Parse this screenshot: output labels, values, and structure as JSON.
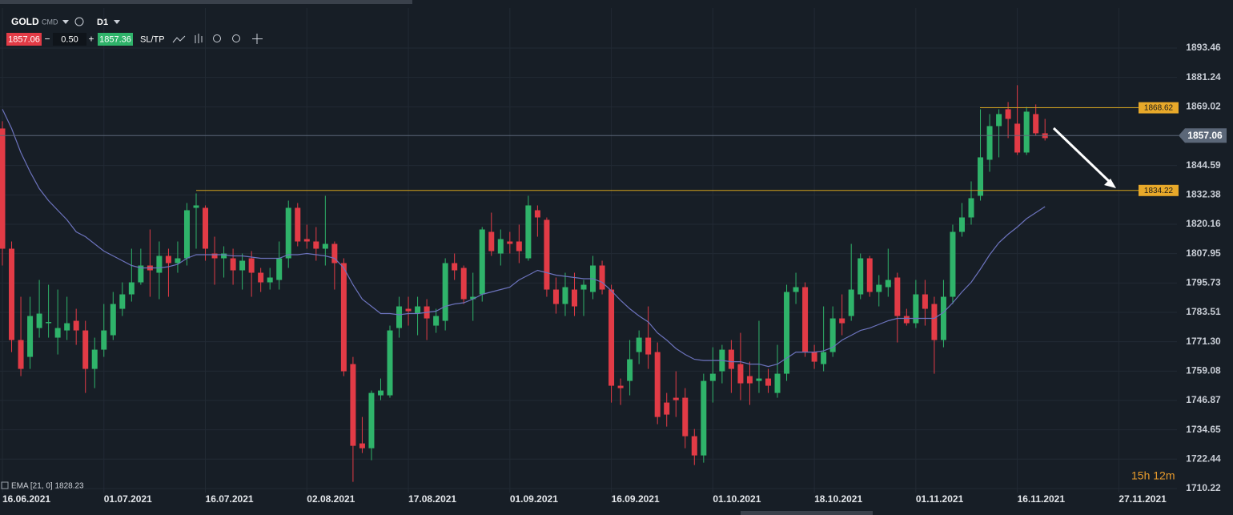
{
  "toolbar": {
    "symbol": "GOLD",
    "kind": "CMD",
    "timeframe": "D1",
    "volume": "0.50",
    "ask": 1857.36,
    "sl_tp": "SL/TP"
  },
  "chart_data": {
    "type": "candlestick",
    "up_color": "#2fb36a",
    "down_color": "#e23b46",
    "open": [
      1860,
      1810,
      1772,
      1765,
      1777,
      1779,
      1773,
      1776,
      1780,
      1776,
      1760,
      1768,
      1774,
      1785,
      1791,
      1796,
      1803,
      1800,
      1807,
      1804,
      1806,
      1827,
      1827,
      1808,
      1806,
      1806,
      1801,
      1806,
      1800,
      1796,
      1797,
      1806,
      1827,
      1814,
      1813,
      1810,
      1812,
      1804,
      1762,
      1729,
      1727,
      1749,
      1749,
      1777,
      1785,
      1783,
      1786,
      1778,
      1780,
      1804,
      1802,
      1789,
      1791,
      1817,
      1808,
      1813,
      1813,
      1806,
      1826,
      1822,
      1793,
      1787,
      1793,
      1793,
      1792,
      1803,
      1793,
      1753,
      1755,
      1767,
      1773,
      1767,
      1746,
      1748,
      1748,
      1732,
      1724,
      1755,
      1759,
      1768,
      1762,
      1757,
      1755,
      1756,
      1750,
      1758,
      1792,
      1794,
      1767,
      1762,
      1767,
      1781,
      1782,
      1791,
      1806,
      1792,
      1794,
      1798,
      1782,
      1779,
      1791,
      1787,
      1772,
      1790,
      1817,
      1823,
      1832,
      1847,
      1861,
      1868,
      1862,
      1850,
      1866,
      1858
    ],
    "high": [
      1863,
      1813,
      1790,
      1790,
      1797,
      1795,
      1793,
      1790,
      1785,
      1780,
      1773,
      1787,
      1792,
      1796,
      1810,
      1810,
      1818,
      1813,
      1810,
      1813,
      1829,
      1833,
      1828,
      1815,
      1811,
      1810,
      1808,
      1809,
      1802,
      1802,
      1813,
      1830,
      1829,
      1820,
      1819,
      1832,
      1813,
      1806,
      1765,
      1740,
      1751,
      1756,
      1778,
      1790,
      1790,
      1790,
      1789,
      1785,
      1806,
      1808,
      1803,
      1800,
      1819,
      1825,
      1818,
      1817,
      1820,
      1832,
      1828,
      1823,
      1798,
      1800,
      1800,
      1797,
      1807,
      1805,
      1795,
      1756,
      1772,
      1776,
      1786,
      1771,
      1750,
      1759,
      1752,
      1735,
      1758,
      1769,
      1770,
      1772,
      1775,
      1763,
      1780,
      1760,
      1770,
      1795,
      1800,
      1796,
      1770,
      1786,
      1786,
      1791,
      1812,
      1808,
      1807,
      1799,
      1810,
      1800,
      1785,
      1797,
      1797,
      1790,
      1797,
      1820,
      1829,
      1838,
      1868,
      1866,
      1868,
      1871,
      1878,
      1869,
      1870,
      1864
    ],
    "low": [
      1803,
      1767,
      1757,
      1760,
      1773,
      1773,
      1766,
      1772,
      1770,
      1750,
      1752,
      1765,
      1772,
      1782,
      1788,
      1795,
      1790,
      1789,
      1790,
      1800,
      1803,
      1810,
      1805,
      1795,
      1798,
      1795,
      1793,
      1790,
      1792,
      1793,
      1793,
      1802,
      1811,
      1810,
      1805,
      1803,
      1793,
      1757,
      1713,
      1725,
      1722,
      1747,
      1748,
      1773,
      1778,
      1774,
      1772,
      1775,
      1776,
      1797,
      1787,
      1780,
      1788,
      1807,
      1803,
      1808,
      1804,
      1805,
      1815,
      1790,
      1783,
      1782,
      1782,
      1782,
      1789,
      1791,
      1746,
      1745,
      1749,
      1762,
      1760,
      1737,
      1736,
      1740,
      1727,
      1720,
      1721,
      1746,
      1754,
      1750,
      1747,
      1745,
      1750,
      1750,
      1748,
      1755,
      1787,
      1765,
      1760,
      1759,
      1765,
      1774,
      1780,
      1789,
      1790,
      1786,
      1790,
      1771,
      1778,
      1777,
      1778,
      1758,
      1769,
      1787,
      1815,
      1820,
      1830,
      1842,
      1848,
      1856,
      1849,
      1849,
      1857,
      1855
    ],
    "close": [
      1810,
      1772,
      1760,
      1782,
      1783,
      1779.5,
      1777,
      1779,
      1776,
      1760,
      1768,
      1776,
      1787,
      1791,
      1796,
      1803,
      1801,
      1807,
      1804,
      1806,
      1826,
      1828,
      1810,
      1806,
      1808,
      1801,
      1805,
      1800,
      1796,
      1798,
      1806,
      1827,
      1813,
      1813,
      1810,
      1812,
      1804,
      1759,
      1728,
      1727,
      1750,
      1751,
      1776,
      1786,
      1784,
      1786,
      1781,
      1782,
      1804,
      1801,
      1789,
      1790,
      1818,
      1809,
      1814,
      1812,
      1809,
      1828,
      1823,
      1793,
      1787,
      1794,
      1786,
      1795,
      1803,
      1793,
      1753,
      1752,
      1764,
      1773,
      1766,
      1740,
      1741,
      1747,
      1732,
      1724,
      1755,
      1758,
      1768,
      1760,
      1754,
      1754,
      1756,
      1753,
      1758,
      1792,
      1794,
      1767,
      1763,
      1767,
      1781,
      1779,
      1793,
      1806,
      1792,
      1795,
      1797,
      1782,
      1779,
      1791,
      1785,
      1772,
      1790,
      1817,
      1823,
      1831,
      1848,
      1861,
      1866,
      1864,
      1850,
      1867,
      1858,
      1856
    ],
    "ema": {
      "label": "EMA [21, 0] 1828.23",
      "color": "#6c73bd",
      "values": [
        1868,
        1860,
        1850,
        1842,
        1835,
        1830,
        1826,
        1822,
        1817,
        1815,
        1812,
        1809,
        1807,
        1805,
        1803,
        1802,
        1802,
        1802,
        1802.5,
        1803.5,
        1806,
        1807.5,
        1807.5,
        1807.5,
        1807.5,
        1807,
        1807,
        1806.5,
        1806,
        1806,
        1806,
        1807.5,
        1807.5,
        1808,
        1807.5,
        1807,
        1806,
        1802,
        1795,
        1789,
        1786,
        1783,
        1783,
        1782.5,
        1783,
        1783,
        1783.5,
        1784,
        1786,
        1787,
        1787.5,
        1789,
        1791,
        1792,
        1793,
        1794,
        1797,
        1799,
        1801,
        1800,
        1799,
        1798.5,
        1798,
        1797.5,
        1797.5,
        1796,
        1792.5,
        1788.5,
        1785,
        1782,
        1779.5,
        1775,
        1772,
        1768.5,
        1766,
        1764,
        1763.5,
        1763.5,
        1763.5,
        1763,
        1763,
        1762,
        1762,
        1761,
        1762,
        1764.5,
        1767,
        1767,
        1767,
        1767.5,
        1769,
        1772,
        1774,
        1776,
        1777,
        1778.5,
        1780,
        1781,
        1781,
        1781,
        1781,
        1781,
        1783.5,
        1787.5,
        1792,
        1796,
        1801.5,
        1807.5,
        1812.5,
        1816,
        1819,
        1822.5,
        1825,
        1827.5
      ]
    },
    "ylim": [
      1708.55,
      1910.12
    ],
    "yticks": [
      1710.22,
      1722.44,
      1734.65,
      1746.87,
      1759.08,
      {
        "value": 1771.3,
        "label": "1771.30"
      },
      1783.51,
      1795.73,
      1807.95,
      1820.16,
      1832.38,
      1844.59,
      1869.02,
      1881.24,
      1893.46
    ],
    "xlim": [
      -0.26,
      127.3
    ],
    "xticks": [
      {
        "value": 0,
        "label": "16.06.2021"
      },
      {
        "value": 11,
        "label": "01.07.2021"
      },
      {
        "value": 22,
        "label": "16.07.2021"
      },
      {
        "value": 33,
        "label": "02.08.2021"
      },
      {
        "value": 44,
        "label": "17.08.2021"
      },
      {
        "value": 55,
        "label": "01.09.2021"
      },
      {
        "value": 66,
        "label": "16.09.2021"
      },
      {
        "value": 77,
        "label": "01.10.2021"
      },
      {
        "value": 88,
        "label": "18.10.2021"
      },
      {
        "value": 99,
        "label": "01.11.2021"
      },
      {
        "value": 110,
        "label": "16.11.2021"
      },
      {
        "value": 121,
        "label": "27.11.2021"
      }
    ],
    "grid": true,
    "levels": [
      1868.62,
      1834.22
    ],
    "level_color": "#d4a21c",
    "last_price": 1857.06,
    "timer": "15h 12m"
  }
}
